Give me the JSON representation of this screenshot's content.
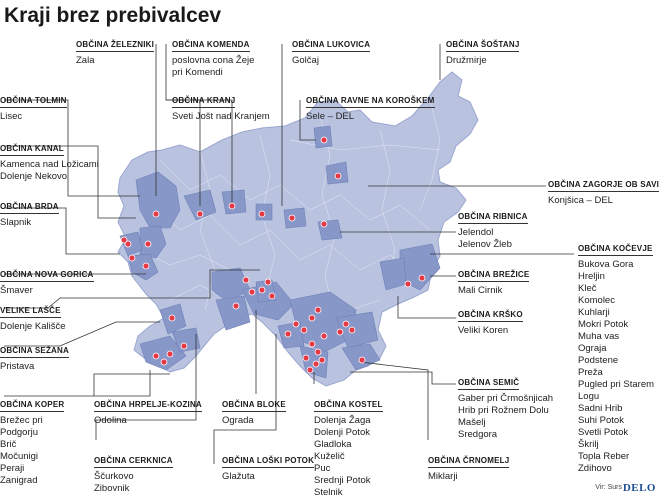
{
  "title": "Kraji brez prebivalcev",
  "source": "Vir: Surs",
  "logo_text": "DELO",
  "colors": {
    "country_fill": "#b9c3e0",
    "highlight_fill": "#8797c8",
    "village_dot": "#e63946",
    "leader_line": "#333333"
  },
  "labels": [
    {
      "id": "zelezniki",
      "heading": "OBČINA ŽELEZNIKI",
      "lines": [
        "Zala"
      ]
    },
    {
      "id": "komenda",
      "heading": "OBČINA KOMENDA",
      "lines": [
        "poslovna cona Žeje",
        "pri Komendi"
      ]
    },
    {
      "id": "lukovica",
      "heading": "OBČINA LUKOVICA",
      "lines": [
        "Golčaj"
      ]
    },
    {
      "id": "sostanj",
      "heading": "OBČINA ŠOŠTANJ",
      "lines": [
        "Družmirje"
      ]
    },
    {
      "id": "kranj",
      "heading": "OBČINA KRANJ",
      "lines": [
        "Sveti Jošt nad Kranjem"
      ]
    },
    {
      "id": "ravne",
      "heading": "OBČINA RAVNE NA KOROŠKEM",
      "lines": [
        "Sele – DEL"
      ]
    },
    {
      "id": "tolmin",
      "heading": "OBČINA TOLMIN",
      "lines": [
        "Lisec"
      ]
    },
    {
      "id": "kanal",
      "heading": "OBČINA KANAL",
      "lines": [
        "Kamenca nad Ložicami",
        "Dolenje Nekovo"
      ]
    },
    {
      "id": "zagorje",
      "heading": "OBČINA ZAGORJE OB SAVI",
      "lines": [
        "Konjšica – DEL"
      ]
    },
    {
      "id": "brda",
      "heading": "OBČINA BRDA",
      "lines": [
        "Slapnik"
      ]
    },
    {
      "id": "ribnica",
      "heading": "OBČINA RIBNICA",
      "lines": [
        "Jelendol",
        "Jelenov Žleb"
      ]
    },
    {
      "id": "kocevje",
      "heading": "OBČINA KOČEVJE",
      "lines": [
        "Bukova Gora",
        "Hreljin",
        "Kleč",
        "Komolec",
        "Kuhlarji",
        "Mokri Potok",
        "Muha vas",
        "Ograja",
        "Podstene",
        "Preža",
        "Pugled pri Starem",
        "Logu",
        "Sadni Hrib",
        "Suhi Potok",
        "Svetli Potok",
        "Škrilj",
        "Topla Reber",
        "Zdihovo"
      ]
    },
    {
      "id": "novagorica",
      "heading": "OBČINA NOVA GORICA",
      "lines": [
        "Šmaver"
      ]
    },
    {
      "id": "brezice",
      "heading": "OBČINA BREŽICE",
      "lines": [
        "Mali Cirnik"
      ]
    },
    {
      "id": "velikelasce",
      "heading": "VELIKE LAŠČE",
      "lines": [
        "Dolenje Kališče"
      ]
    },
    {
      "id": "krsko",
      "heading": "OBČINA KRŠKO",
      "lines": [
        "Veliki Koren"
      ]
    },
    {
      "id": "sezana",
      "heading": "OBČINA SEŽANA",
      "lines": [
        "Pristava"
      ]
    },
    {
      "id": "semic",
      "heading": "OBČINA SEMIČ",
      "lines": [
        "Gaber pri Črmošnjicah",
        "Hrib pri Rožnem Dolu",
        "Mašelj",
        "Sredgora"
      ]
    },
    {
      "id": "koper",
      "heading": "OBČINA KOPER",
      "lines": [
        "Brežec pri",
        "Podgorju",
        "Brič",
        "Močunigi",
        "Peraji",
        "Zanigrad"
      ]
    },
    {
      "id": "hrpelje",
      "heading": "OBČINA HRPELJE-KOZINA",
      "lines": [
        "Odolina"
      ]
    },
    {
      "id": "bloke",
      "heading": "OBČINA BLOKE",
      "lines": [
        "Ograda"
      ]
    },
    {
      "id": "kostel",
      "heading": "OBČINA KOSTEL",
      "lines": [
        "Dolenja Žaga",
        "Dolenji Potok",
        "Gladloka",
        "Kuželič",
        "Puc",
        "Srednji Potok",
        "Stelnik"
      ]
    },
    {
      "id": "crnomelj",
      "heading": "OBČINA ČRNOMELJ",
      "lines": [
        "Miklarji"
      ]
    },
    {
      "id": "cerknica",
      "heading": "OBČINA CERKNICA",
      "lines": [
        "Ščurkovo",
        "Zibovnik"
      ]
    },
    {
      "id": "loskipotok",
      "heading": "OBČINA LOŠKI POTOK",
      "lines": [
        "Glažuta"
      ]
    }
  ]
}
